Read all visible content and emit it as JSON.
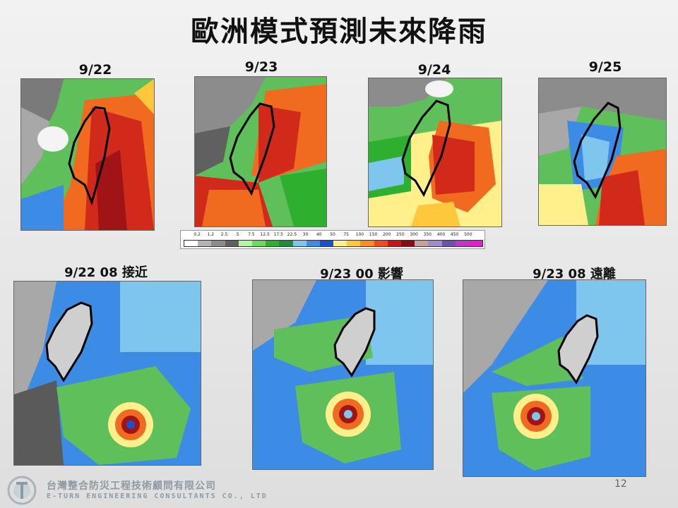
{
  "title": "歐洲模式預測未來降雨",
  "top_panels": [
    {
      "date": "9/22"
    },
    {
      "date": "9/23"
    },
    {
      "date": "9/24"
    },
    {
      "date": "9/25"
    }
  ],
  "colorbar": {
    "ticks": [
      "0.2",
      "1.2",
      "2.5",
      "5",
      "7.5",
      "12.5",
      "17.5",
      "22.5",
      "30",
      "40",
      "50",
      "75",
      "100",
      "150",
      "200",
      "250",
      "300",
      "350",
      "400",
      "450",
      "500"
    ],
    "colors": [
      "#ffffff",
      "#b4b4b4",
      "#8c8c8c",
      "#606060",
      "#b6f2a8",
      "#6fd85e",
      "#2faf2f",
      "#1e8c3c",
      "#7ec6ee",
      "#3c8ce6",
      "#1e50c8",
      "#fff08c",
      "#ffc83c",
      "#ff8c1e",
      "#f04a1e",
      "#c8141e",
      "#8c0a14",
      "#c8a0a0",
      "#a08cc8",
      "#6e50b4",
      "#b43cc8",
      "#e01ed2"
    ]
  },
  "bottom_panels": [
    {
      "label": "9/22 08 接近"
    },
    {
      "label": "9/23 00 影響"
    },
    {
      "label": "9/23 08 遠離"
    }
  ],
  "footer": {
    "company_cn": "台灣整合防災工程技術顧問有限公司",
    "company_en": "E-TURN ENGINEERING CONSULTANTS CO., LTD",
    "page_number": "12"
  }
}
